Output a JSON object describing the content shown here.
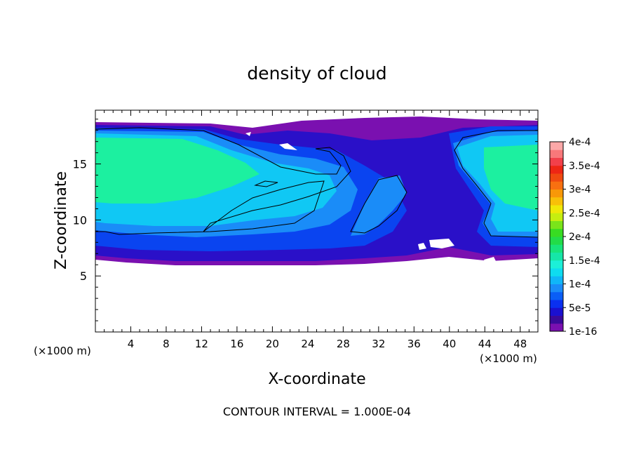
{
  "chart_data": {
    "type": "heatmap",
    "title": "density of cloud",
    "xlabel": "X-coordinate",
    "ylabel": "Z-coordinate",
    "x_unit": "(×1000 m)",
    "y_unit": "(×1000 m)",
    "xlim": [
      0,
      50
    ],
    "ylim": [
      0,
      19.8
    ],
    "x_ticks": [
      "4",
      "8",
      "12",
      "16",
      "20",
      "24",
      "28",
      "32",
      "36",
      "40",
      "44",
      "48"
    ],
    "y_ticks": [
      "5",
      "10",
      "15"
    ],
    "colorbar": {
      "labels": [
        "1e-16",
        "5e-5",
        "1e-4",
        "1.5e-4",
        "2e-4",
        "2.5e-4",
        "3e-4",
        "3.5e-4",
        "4e-4"
      ],
      "colors": [
        "#7a10b0",
        "#3a0a9a",
        "#1a10d0",
        "#0a30f0",
        "#0a5ef6",
        "#1a8cf8",
        "#10b6f8",
        "#0edcf0",
        "#1cf0d8",
        "#16e6a8",
        "#18e47a",
        "#22dc48",
        "#38dc22",
        "#7ae41a",
        "#c6ee10",
        "#f0e808",
        "#f8c008",
        "#f89808",
        "#f87010",
        "#f04a10",
        "#ee2614",
        "#f2404a",
        "#f8787a",
        "#fca8a8"
      ]
    },
    "contour_interval_text": "CONTOUR INTERVAL = 1.000E-04"
  }
}
